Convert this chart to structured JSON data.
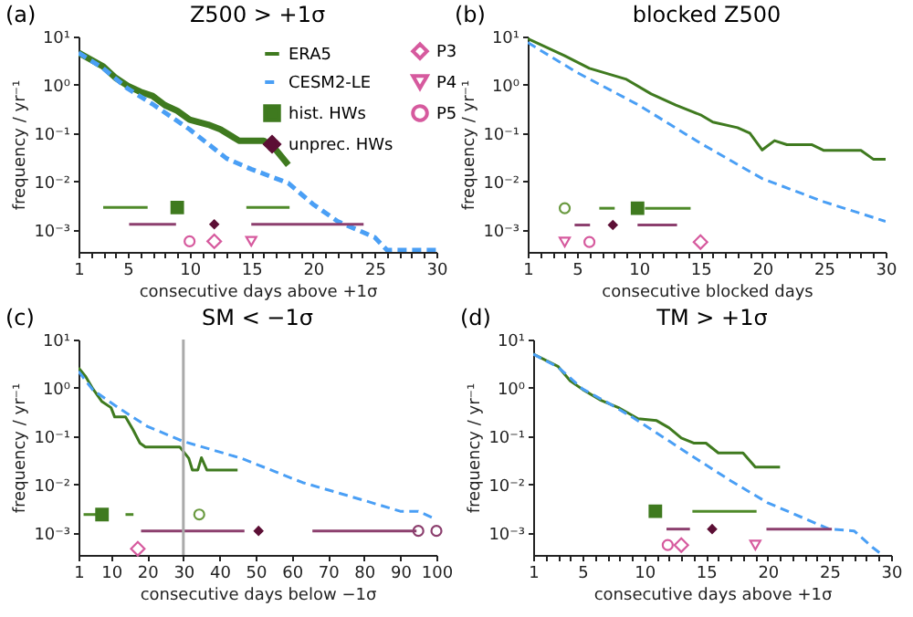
{
  "chart_data": [
    {
      "type": "line",
      "title": "Z500 > +1σ",
      "xlabel": "consecutive days above +1σ",
      "ylabel": "frequency / yr⁻¹",
      "annotations": [
        "(a)"
      ],
      "log": "y",
      "legend": "top right",
      "xlim": [
        1,
        30
      ],
      "ylim": [
        0.00035,
        10
      ],
      "xticks": [
        1,
        {
          "value": 2,
          "label": null
        },
        {
          "value": 3,
          "label": null
        },
        {
          "value": 4,
          "label": null
        },
        5,
        {
          "value": 6,
          "label": null
        },
        {
          "value": 7,
          "label": null
        },
        {
          "value": 8,
          "label": null
        },
        {
          "value": 9,
          "label": null
        },
        10,
        {
          "value": 11,
          "label": null
        },
        {
          "value": 12,
          "label": null
        },
        {
          "value": 13,
          "label": null
        },
        {
          "value": 14,
          "label": null
        },
        15,
        {
          "value": 16,
          "label": null
        },
        {
          "value": 17,
          "label": null
        },
        {
          "value": 18,
          "label": null
        },
        {
          "value": 19,
          "label": null
        },
        20,
        {
          "value": 21,
          "label": null
        },
        {
          "value": 22,
          "label": null
        },
        {
          "value": 23,
          "label": null
        },
        {
          "value": 24,
          "label": null
        },
        25,
        {
          "value": 26,
          "label": null
        },
        {
          "value": 27,
          "label": null
        },
        {
          "value": 28,
          "label": null
        },
        {
          "value": 29,
          "label": null
        },
        30
      ],
      "yticks": [
        {
          "value": 0.001,
          "label": "10⁻³"
        },
        {
          "value": 0.01,
          "label": "10⁻²"
        },
        {
          "value": 0.1,
          "label": "10⁻¹"
        },
        {
          "value": 1,
          "label": "10⁰"
        },
        {
          "value": 10,
          "label": "10¹"
        }
      ],
      "series": [
        {
          "name": "ERA5",
          "type": "line",
          "line_style": "solid",
          "color": "#3f7a1f",
          "x": [
            1,
            3,
            4,
            5,
            6,
            7,
            8,
            9,
            10,
            11.5,
            12.5,
            14,
            16,
            17,
            18
          ],
          "values": [
            4.6,
            2.4,
            1.4,
            0.95,
            0.72,
            0.59,
            0.38,
            0.29,
            0.19,
            0.15,
            0.12,
            0.07,
            0.07,
            0.045,
            0.022
          ]
        },
        {
          "name": "CESM2-LE",
          "type": "line",
          "line_style": "dashed",
          "color": "#4a9ff5",
          "x": [
            1,
            3,
            5,
            7,
            10,
            13,
            15,
            18,
            20,
            22,
            25,
            26,
            30
          ],
          "values": [
            4.6,
            2.2,
            0.83,
            0.4,
            0.12,
            0.03,
            0.018,
            0.0093,
            0.0034,
            0.0015,
            0.0007,
            0.00038,
            0.00038
          ]
        },
        {
          "name": "hist. HWs",
          "type": "scatter",
          "marker": "square",
          "color": "#3f7a1f",
          "x": [
            9
          ],
          "values": [
            0.0029
          ]
        },
        {
          "name": "unprec. HWs",
          "type": "scatter",
          "marker": "diamond",
          "color": "#5c0f35",
          "x": [
            12
          ],
          "values": [
            0.0013
          ],
          "errors": [
            [
              0.0011,
              0.0016
            ]
          ]
        },
        {
          "name": "P3",
          "type": "scatter",
          "marker": "diamond",
          "color": "#d65a9e",
          "x": [
            12
          ],
          "values": [
            0.00058
          ]
        },
        {
          "name": "P4",
          "type": "scatter",
          "marker": "triangle",
          "color": "#d65a9e",
          "x": [
            15
          ],
          "values": [
            0.00058
          ]
        },
        {
          "name": "P5",
          "type": "scatter",
          "marker": "circle",
          "color": "#d65a9e",
          "x": [
            10
          ],
          "values": [
            0.00058
          ]
        },
        {
          "type": "line",
          "line_style": "solid",
          "color": "#4f8a2a",
          "x": [
            3,
            6.6
          ],
          "values": [
            0.0029,
            0.0029
          ]
        },
        {
          "type": "line",
          "line_style": "solid",
          "color": "#4f8a2a",
          "x": [
            14.6,
            18.1
          ],
          "values": [
            0.0029,
            0.0029
          ]
        },
        {
          "type": "line",
          "line_style": "solid",
          "color": "#8c3f6e",
          "x": [
            5.1,
            8.9
          ],
          "values": [
            0.0013,
            0.0013
          ]
        },
        {
          "type": "line",
          "line_style": "solid",
          "color": "#8c3f6e",
          "x": [
            15,
            24.1
          ],
          "values": [
            0.0013,
            0.0013
          ]
        }
      ]
    },
    {
      "type": "line",
      "title": "blocked Z500",
      "xlabel": "consecutive blocked days",
      "ylabel": "frequency / yr⁻¹",
      "annotations": [
        "(b)"
      ],
      "log": "y",
      "xlim": [
        1,
        30
      ],
      "ylim": [
        0.00035,
        10
      ],
      "xticks": [
        1,
        {
          "value": 2,
          "label": null
        },
        {
          "value": 3,
          "label": null
        },
        {
          "value": 4,
          "label": null
        },
        5,
        {
          "value": 6,
          "label": null
        },
        {
          "value": 7,
          "label": null
        },
        {
          "value": 8,
          "label": null
        },
        {
          "value": 9,
          "label": null
        },
        10,
        {
          "value": 11,
          "label": null
        },
        {
          "value": 12,
          "label": null
        },
        {
          "value": 13,
          "label": null
        },
        {
          "value": 14,
          "label": null
        },
        15,
        {
          "value": 16,
          "label": null
        },
        {
          "value": 17,
          "label": null
        },
        {
          "value": 18,
          "label": null
        },
        {
          "value": 19,
          "label": null
        },
        20,
        {
          "value": 21,
          "label": null
        },
        {
          "value": 22,
          "label": null
        },
        {
          "value": 23,
          "label": null
        },
        {
          "value": 24,
          "label": null
        },
        25,
        {
          "value": 26,
          "label": null
        },
        {
          "value": 27,
          "label": null
        },
        {
          "value": 28,
          "label": null
        },
        {
          "value": 29,
          "label": null
        },
        30
      ],
      "yticks": [
        {
          "value": 0.001,
          "label": "10⁻³"
        },
        {
          "value": 0.01,
          "label": "10⁻²"
        },
        {
          "value": 0.1,
          "label": "10⁻¹"
        },
        {
          "value": 1,
          "label": "10⁰"
        },
        {
          "value": 10,
          "label": "10¹"
        }
      ],
      "series": [
        {
          "type": "line",
          "line_style": "solid",
          "color": "#3f7a1f",
          "x": [
            1,
            4,
            6,
            9,
            11,
            13,
            15,
            16,
            18,
            19,
            20,
            21,
            22,
            24,
            25,
            28,
            29,
            30
          ],
          "values": [
            9,
            4,
            2.2,
            1.3,
            0.65,
            0.38,
            0.24,
            0.17,
            0.13,
            0.1,
            0.045,
            0.07,
            0.058,
            0.058,
            0.044,
            0.044,
            0.029,
            0.029
          ]
        },
        {
          "type": "line",
          "line_style": "dashed",
          "color": "#4a9ff5",
          "x": [
            1,
            5,
            10,
            15,
            20,
            25,
            30
          ],
          "values": [
            7.5,
            1.8,
            0.38,
            0.062,
            0.0115,
            0.0038,
            0.0015
          ]
        },
        {
          "type": "scatter",
          "marker": "square",
          "color": "#3f7a1f",
          "x": [
            9.9
          ],
          "values": [
            0.0028
          ]
        },
        {
          "type": "scatter",
          "marker": "diamond",
          "color": "#5c0f35",
          "x": [
            7.9
          ],
          "values": [
            0.00126
          ],
          "errors": [
            [
              0.00108,
              0.0015
            ]
          ]
        },
        {
          "type": "scatter",
          "marker": "diamond",
          "color": "#d65a9e",
          "x": [
            15
          ],
          "values": [
            0.00056
          ]
        },
        {
          "type": "scatter",
          "marker": "triangle",
          "color": "#d65a9e",
          "x": [
            4
          ],
          "values": [
            0.00056
          ]
        },
        {
          "type": "scatter",
          "marker": "circle",
          "color": "#d65a9e",
          "x": [
            6
          ],
          "values": [
            0.00056
          ]
        },
        {
          "type": "scatter",
          "marker": "circle",
          "color": "#6a9a40",
          "x": [
            4
          ],
          "values": [
            0.0028
          ]
        },
        {
          "type": "line",
          "line_style": "solid",
          "color": "#4f8a2a",
          "x": [
            6.8,
            8.05
          ],
          "values": [
            0.0028,
            0.0028
          ]
        },
        {
          "type": "line",
          "line_style": "solid",
          "color": "#4f8a2a",
          "x": [
            10.5,
            14.2
          ],
          "values": [
            0.0028,
            0.0028
          ]
        },
        {
          "type": "line",
          "line_style": "solid",
          "color": "#8c3f6e",
          "x": [
            4.8,
            6.05
          ],
          "values": [
            0.00126,
            0.00126
          ]
        },
        {
          "type": "line",
          "line_style": "solid",
          "color": "#8c3f6e",
          "x": [
            9.9,
            13.1
          ],
          "values": [
            0.00126,
            0.00126
          ]
        }
      ]
    },
    {
      "type": "line",
      "title": "SM < −1σ",
      "xlabel": "consecutive days below −1σ",
      "ylabel": "frequency / yr⁻¹",
      "annotations": [
        "(c)"
      ],
      "log": "y",
      "xlim": [
        1,
        100
      ],
      "ylim": [
        0.00035,
        10
      ],
      "xticks": [
        1,
        10,
        20,
        30,
        40,
        50,
        60,
        70,
        80,
        90,
        100
      ],
      "yticks": [
        {
          "value": 0.001,
          "label": "10⁻³"
        },
        {
          "value": 0.01,
          "label": "10⁻²"
        },
        {
          "value": 0.1,
          "label": "10⁻¹"
        },
        {
          "value": 1,
          "label": "10⁰"
        },
        {
          "value": 10,
          "label": "10¹"
        }
      ],
      "ref_lines": [
        {
          "axis": "x",
          "value": 30,
          "color": "#aaaaaa"
        }
      ],
      "series": [
        {
          "type": "line",
          "line_style": "solid",
          "color": "#3f7a1f",
          "x": [
            1,
            3,
            5,
            7.5,
            10,
            11,
            14,
            16,
            18,
            19.5,
            29,
            31.5,
            32.5,
            34,
            35,
            36.5,
            45
          ],
          "values": [
            2.6,
            1.7,
            0.95,
            0.52,
            0.39,
            0.25,
            0.25,
            0.14,
            0.072,
            0.06,
            0.06,
            0.035,
            0.02,
            0.02,
            0.036,
            0.02,
            0.02
          ]
        },
        {
          "type": "line",
          "line_style": "dashed",
          "color": "#4a9ff5",
          "x": [
            1,
            5,
            12,
            20,
            30,
            46,
            63,
            80,
            90,
            95,
            100
          ],
          "values": [
            2.2,
            0.9,
            0.39,
            0.16,
            0.078,
            0.035,
            0.011,
            0.0047,
            0.0028,
            0.0028,
            0.0019
          ]
        },
        {
          "type": "scatter",
          "marker": "square",
          "color": "#3f7a1f",
          "x": [
            7.5
          ],
          "values": [
            0.0024
          ]
        },
        {
          "type": "scatter",
          "marker": "diamond",
          "color": "#5c0f35",
          "x": [
            50.8
          ],
          "values": [
            0.0011
          ],
          "errors": [
            [
              0.00095,
              0.0013
            ]
          ]
        },
        {
          "type": "scatter",
          "marker": "diamond",
          "color": "#d65a9e",
          "x": [
            17.4
          ],
          "values": [
            0.00047
          ]
        },
        {
          "type": "scatter",
          "marker": "circle",
          "color": "#6a9a40",
          "x": [
            34.4
          ],
          "values": [
            0.0024
          ]
        },
        {
          "type": "scatter",
          "marker": "circle",
          "color": "#8c3f6e",
          "x": [
            95,
            100
          ],
          "values": [
            0.0011,
            0.0011
          ]
        },
        {
          "type": "line",
          "line_style": "solid",
          "color": "#4f8a2a",
          "x": [
            2.4,
            6.6
          ],
          "values": [
            0.0024,
            0.0024
          ]
        },
        {
          "type": "line",
          "line_style": "solid",
          "color": "#4f8a2a",
          "x": [
            14,
            16.2
          ],
          "values": [
            0.0024,
            0.0024
          ]
        },
        {
          "type": "line",
          "line_style": "solid",
          "color": "#8c3f6e",
          "x": [
            18.3,
            46.9
          ],
          "values": [
            0.0011,
            0.0011
          ]
        },
        {
          "type": "line",
          "line_style": "solid",
          "color": "#8c3f6e",
          "x": [
            65.7,
            94.5
          ],
          "values": [
            0.0011,
            0.0011
          ]
        }
      ]
    },
    {
      "type": "line",
      "title": "TM > +1σ",
      "xlabel": "consecutive days above +1σ",
      "ylabel": "frequency / yr⁻¹",
      "annotations": [
        "(d)"
      ],
      "log": "y",
      "xlim": [
        1,
        30
      ],
      "ylim": [
        0.00035,
        10
      ],
      "xticks": [
        1,
        {
          "value": 2,
          "label": null
        },
        {
          "value": 3,
          "label": null
        },
        {
          "value": 4,
          "label": null
        },
        5,
        {
          "value": 6,
          "label": null
        },
        {
          "value": 7,
          "label": null
        },
        {
          "value": 8,
          "label": null
        },
        {
          "value": 9,
          "label": null
        },
        10,
        {
          "value": 11,
          "label": null
        },
        {
          "value": 12,
          "label": null
        },
        {
          "value": 13,
          "label": null
        },
        {
          "value": 14,
          "label": null
        },
        15,
        {
          "value": 16,
          "label": null
        },
        {
          "value": 17,
          "label": null
        },
        {
          "value": 18,
          "label": null
        },
        {
          "value": 19,
          "label": null
        },
        20,
        {
          "value": 21,
          "label": null
        },
        {
          "value": 22,
          "label": null
        },
        {
          "value": 23,
          "label": null
        },
        {
          "value": 24,
          "label": null
        },
        25,
        {
          "value": 26,
          "label": null
        },
        {
          "value": 27,
          "label": null
        },
        {
          "value": 28,
          "label": null
        },
        {
          "value": 29,
          "label": null
        },
        30
      ],
      "yticks": [
        {
          "value": 0.001,
          "label": "10⁻³"
        },
        {
          "value": 0.01,
          "label": "10⁻²"
        },
        {
          "value": 0.1,
          "label": "10⁻¹"
        },
        {
          "value": 1,
          "label": "10⁰"
        },
        {
          "value": 10,
          "label": "10¹"
        }
      ],
      "series": [
        {
          "type": "line",
          "line_style": "solid",
          "color": "#3f7a1f",
          "x": [
            1,
            3,
            4,
            5,
            6.5,
            8,
            9.5,
            11,
            12,
            13,
            14,
            15,
            16,
            18,
            19,
            21
          ],
          "values": [
            5,
            2.8,
            1.4,
            0.93,
            0.55,
            0.38,
            0.23,
            0.21,
            0.15,
            0.092,
            0.072,
            0.072,
            0.045,
            0.045,
            0.023,
            0.023
          ]
        },
        {
          "type": "line",
          "line_style": "dashed",
          "color": "#4a9ff5",
          "x": [
            1,
            3,
            5,
            7,
            9,
            12,
            14,
            17,
            20,
            25,
            27,
            28.5,
            29.3
          ],
          "values": [
            5,
            2.7,
            0.95,
            0.5,
            0.25,
            0.08,
            0.037,
            0.012,
            0.0042,
            0.0012,
            0.0011,
            0.0005,
            0.00035
          ]
        },
        {
          "type": "scatter",
          "marker": "square",
          "color": "#3f7a1f",
          "x": [
            10.9
          ],
          "values": [
            0.0028
          ]
        },
        {
          "type": "scatter",
          "marker": "diamond",
          "color": "#5c0f35",
          "x": [
            15.5
          ],
          "values": [
            0.0012
          ],
          "errors": [
            [
              0.001,
              0.0014
            ]
          ]
        },
        {
          "type": "scatter",
          "marker": "diamond",
          "color": "#d65a9e",
          "x": [
            13
          ],
          "values": [
            0.00056
          ]
        },
        {
          "type": "scatter",
          "marker": "triangle",
          "color": "#d65a9e",
          "x": [
            19
          ],
          "values": [
            0.00056
          ]
        },
        {
          "type": "scatter",
          "marker": "circle",
          "color": "#d65a9e",
          "x": [
            11.9
          ],
          "values": [
            0.00056
          ]
        },
        {
          "type": "line",
          "line_style": "solid",
          "color": "#4f8a2a",
          "x": [
            13.9,
            19.1
          ],
          "values": [
            0.0028,
            0.0028
          ]
        },
        {
          "type": "line",
          "line_style": "solid",
          "color": "#8c3f6e",
          "x": [
            11.8,
            13.7
          ],
          "values": [
            0.0012,
            0.0012
          ]
        },
        {
          "type": "line",
          "line_style": "solid",
          "color": "#8c3f6e",
          "x": [
            19.9,
            25.2
          ],
          "values": [
            0.0012,
            0.0012
          ]
        }
      ]
    }
  ]
}
